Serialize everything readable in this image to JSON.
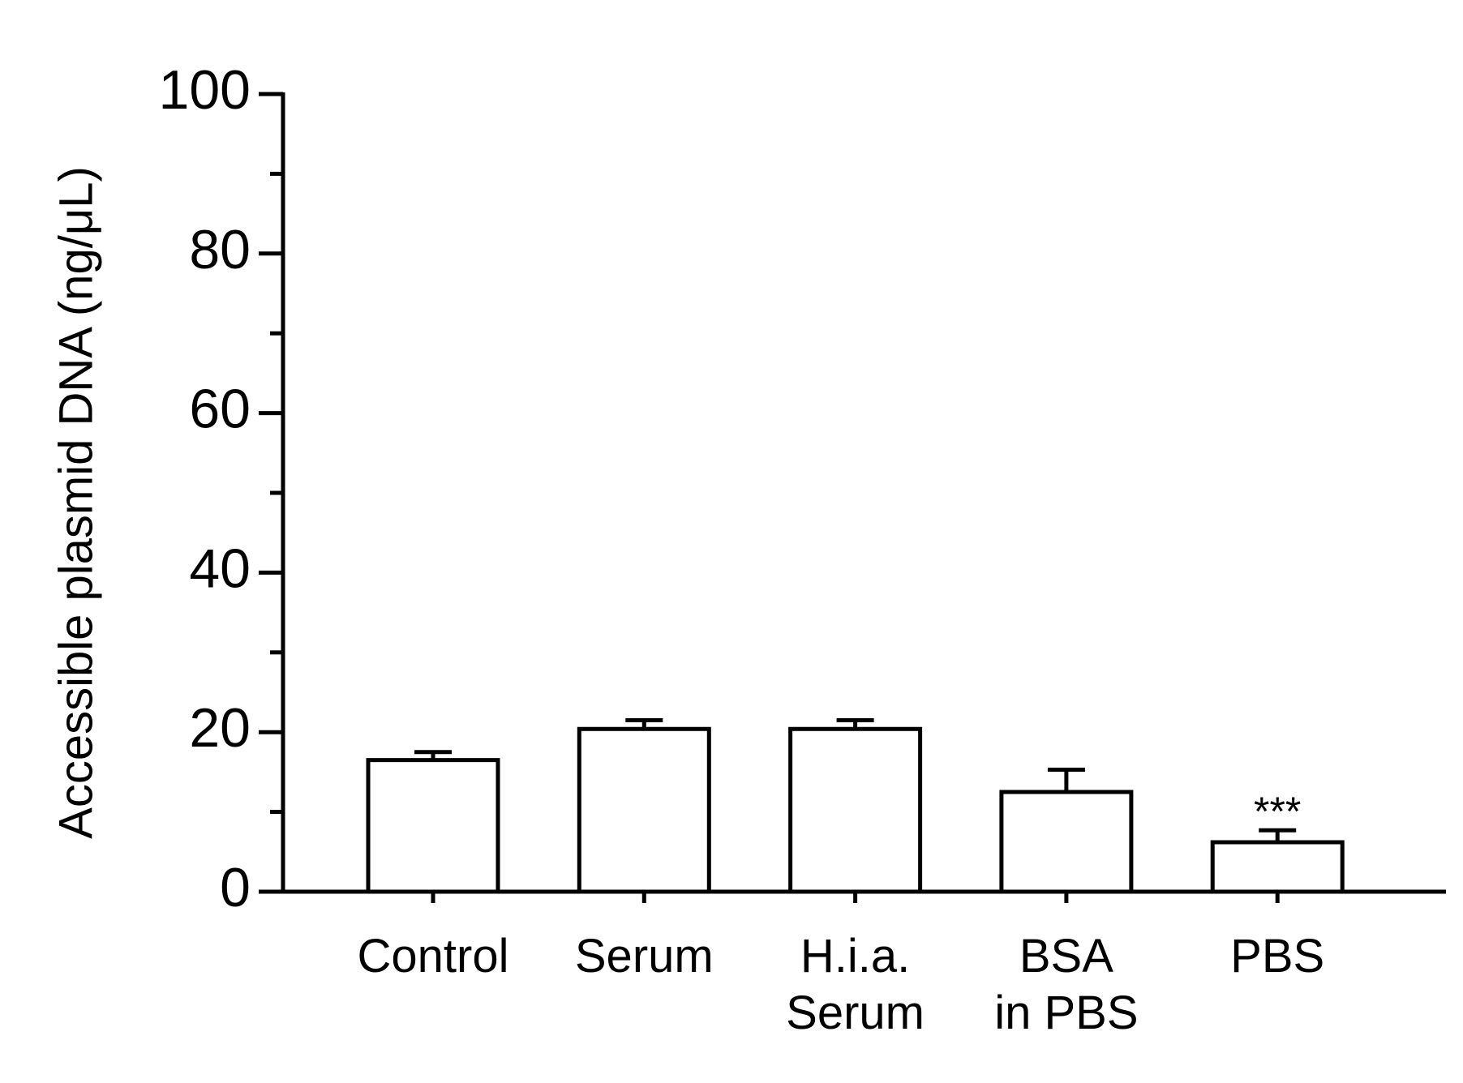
{
  "chart_data": {
    "type": "bar",
    "ylabel": "Accessible plasmid DNA (ng/μL)",
    "categories": [
      "Control",
      "Serum",
      "H.i.a.\nSerum",
      "BSA\nin PBS",
      "PBS"
    ],
    "values": [
      16.5,
      20.4,
      20.4,
      12.5,
      6.2
    ],
    "errors": [
      1.0,
      1.1,
      1.1,
      2.8,
      1.5
    ],
    "color": "#ffffff",
    "edgecolor": "#000000",
    "ylim": [
      0,
      100
    ],
    "yticks": [
      0,
      20,
      40,
      60,
      80,
      100
    ],
    "minor_yticks": [
      10,
      30,
      50,
      70,
      90
    ],
    "annotations": [
      {
        "text": "***",
        "category": "PBS"
      }
    ]
  }
}
